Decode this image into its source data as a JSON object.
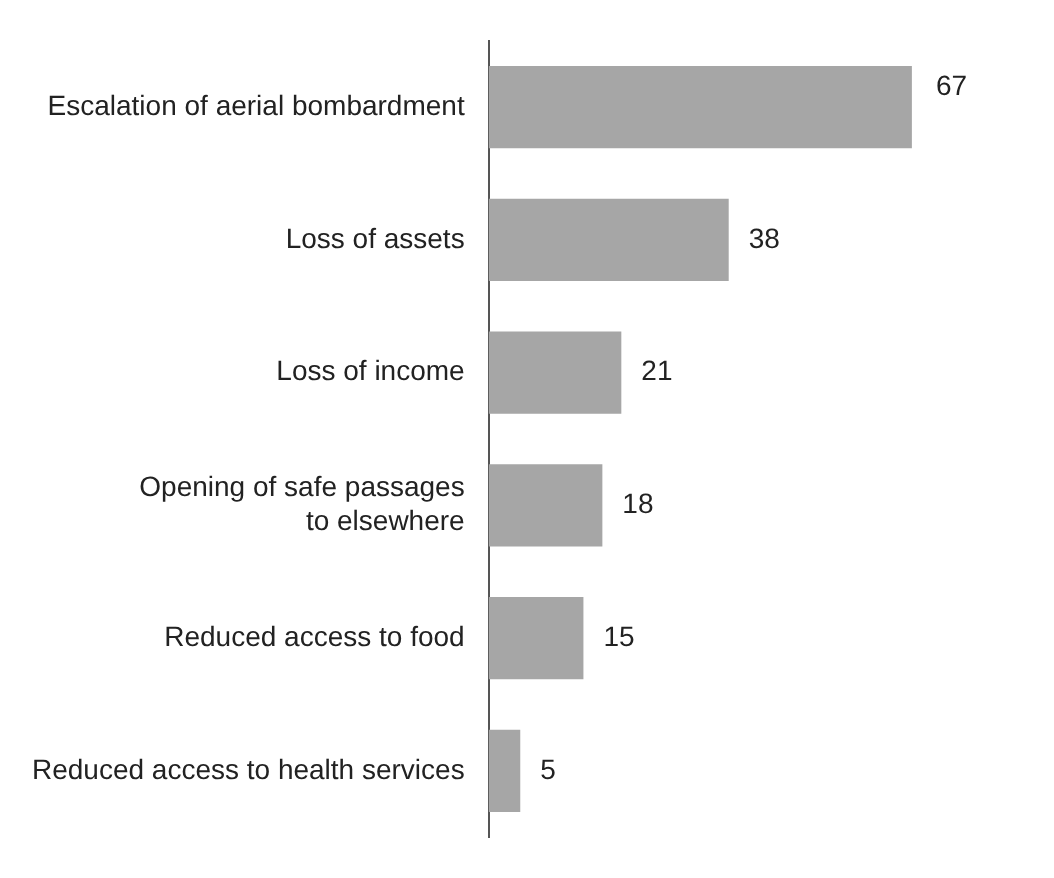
{
  "chart_data": {
    "type": "bar",
    "orientation": "horizontal",
    "categories": [
      "Escalation of aerial bombardment",
      "Loss of assets",
      "Loss of income",
      "Opening of safe passages to elsewhere",
      "Reduced access to food",
      "Reduced access to health services"
    ],
    "values": [
      67,
      38,
      21,
      18,
      15,
      5
    ],
    "color": "#a6a6a6",
    "data_labels": true,
    "legend": false
  }
}
